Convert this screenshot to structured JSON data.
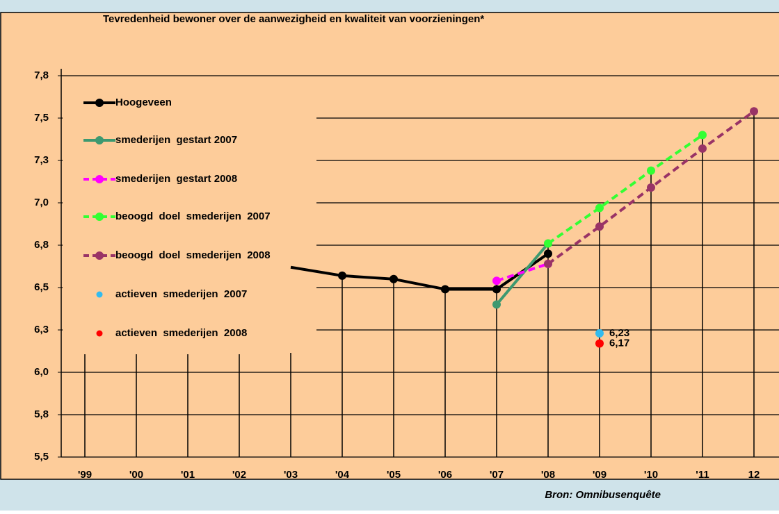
{
  "chart_data": {
    "type": "line",
    "title": "Tevredenheid  bewoner over de aanwezigheid en kwaliteit van voorzieningen*",
    "source": "Bron: Omnibusenquête",
    "categories": [
      "'99",
      "'00",
      "'01",
      "'02",
      "'03",
      "'04",
      "'05",
      "'06",
      "'07",
      "'08",
      "'09",
      "'10",
      "'11",
      "12"
    ],
    "ylim": [
      5.5,
      7.75
    ],
    "yticks": [
      {
        "value": 5.5,
        "label": "5,5"
      },
      {
        "value": 5.75,
        "label": "5,8"
      },
      {
        "value": 6.0,
        "label": "6,0"
      },
      {
        "value": 6.25,
        "label": "6,3"
      },
      {
        "value": 6.5,
        "label": "6,5"
      },
      {
        "value": 6.75,
        "label": "6,8"
      },
      {
        "value": 7.0,
        "label": "7,0"
      },
      {
        "value": 7.25,
        "label": "7,3"
      },
      {
        "value": 7.5,
        "label": "7,5"
      },
      {
        "value": 7.75,
        "label": "7,8"
      }
    ],
    "grid": true,
    "series": [
      {
        "name": "Hoogeveen",
        "color": "#000000",
        "dash": false,
        "values": [
          null,
          null,
          null,
          null,
          6.62,
          6.57,
          6.55,
          6.49,
          6.49,
          6.7,
          null,
          null,
          null,
          null
        ]
      },
      {
        "name": "smederijen  gestart 2007",
        "color": "#3d9970",
        "dash": false,
        "values": [
          null,
          null,
          null,
          null,
          null,
          null,
          null,
          null,
          6.4,
          6.76,
          null,
          null,
          null,
          null
        ]
      },
      {
        "name": "smederijen  gestart 2008",
        "color": "#ff00ff",
        "dash": true,
        "values": [
          null,
          null,
          null,
          null,
          null,
          null,
          null,
          null,
          6.54,
          6.64,
          null,
          null,
          null,
          null
        ]
      },
      {
        "name": "beoogd  doel  smederijen  2007",
        "color": "#33ff33",
        "dash": true,
        "values": [
          null,
          null,
          null,
          null,
          null,
          null,
          null,
          null,
          null,
          6.76,
          6.97,
          7.19,
          7.4,
          null
        ]
      },
      {
        "name": "beoogd  doel  smederijen  2008",
        "color": "#993366",
        "dash": true,
        "values": [
          null,
          null,
          null,
          null,
          null,
          null,
          null,
          null,
          null,
          6.64,
          6.86,
          7.09,
          7.32,
          7.54
        ]
      },
      {
        "name": "actieven  smederijen  2007",
        "color": "#33bbee",
        "marker_only": true,
        "values": [
          null,
          null,
          null,
          null,
          null,
          null,
          null,
          null,
          null,
          null,
          6.23,
          null,
          null,
          null
        ],
        "value_labels": [
          null,
          null,
          null,
          null,
          null,
          null,
          null,
          null,
          null,
          null,
          "6,23",
          null,
          null,
          null
        ]
      },
      {
        "name": "actieven  smederijen  2008",
        "color": "#ff0000",
        "marker_only": true,
        "values": [
          null,
          null,
          null,
          null,
          null,
          null,
          null,
          null,
          null,
          null,
          6.17,
          null,
          null,
          null
        ],
        "value_labels": [
          null,
          null,
          null,
          null,
          null,
          null,
          null,
          null,
          null,
          null,
          "6,17",
          null,
          null,
          null
        ]
      }
    ]
  }
}
